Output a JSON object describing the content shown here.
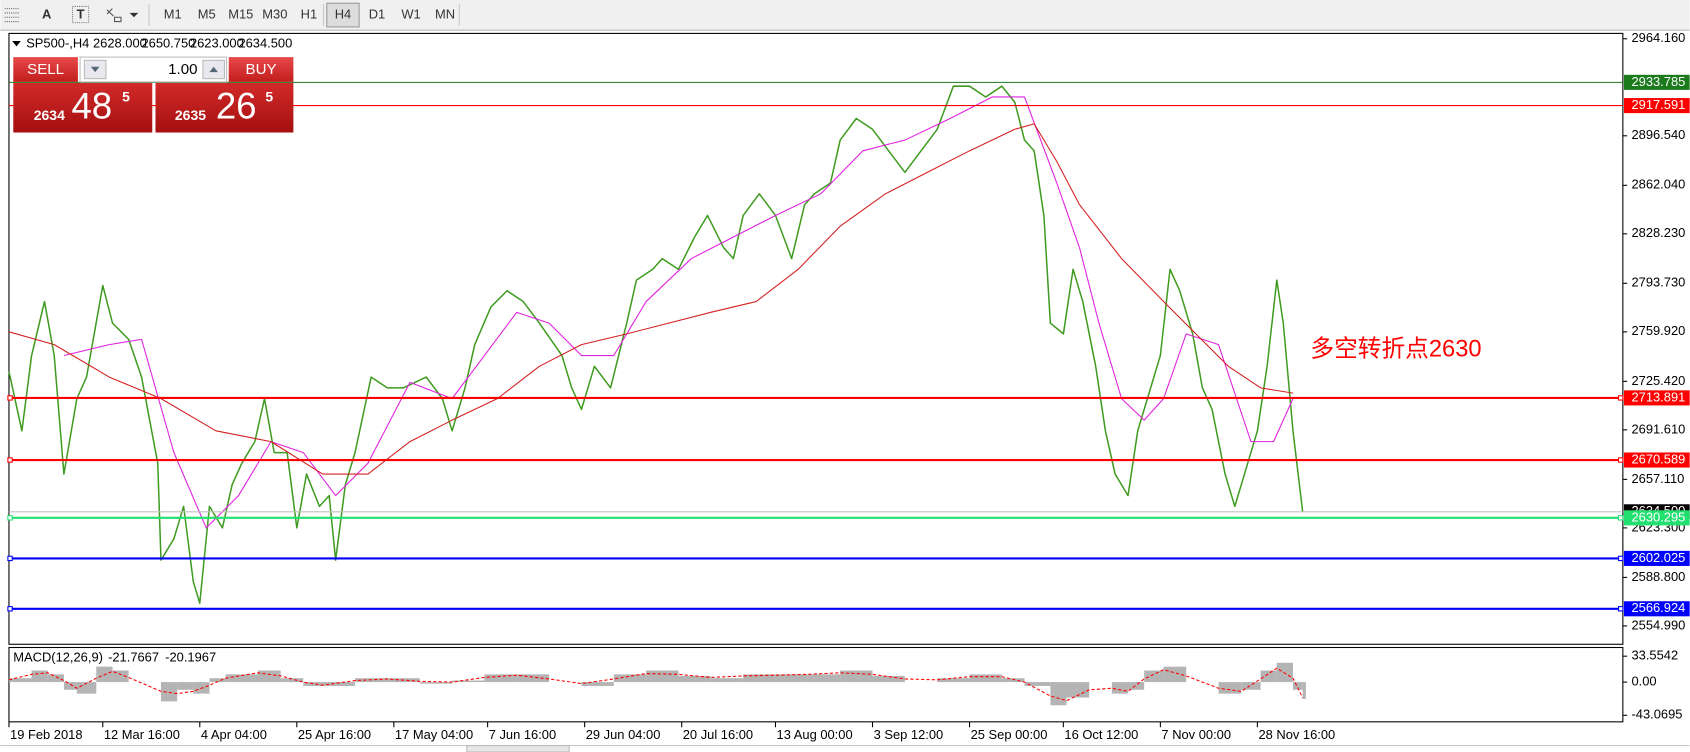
{
  "toolbar": {
    "icons": [
      "A",
      "T"
    ],
    "timeframes": [
      "M1",
      "M5",
      "M15",
      "M30",
      "H1",
      "H4",
      "D1",
      "W1",
      "MN"
    ],
    "selected": 5
  },
  "trade_panel": {
    "sell": "SELL",
    "buy": "BUY",
    "lot": "1.00",
    "bid": [
      2634,
      48,
      5
    ],
    "ask": [
      2635,
      26,
      5
    ]
  },
  "chart_data": [
    {
      "type": "line",
      "title": "SP500-,H4",
      "ohlc": [
        {
          "value": 2628,
          "label": "2628.000"
        },
        {
          "value": 2650.75,
          "label": "2650.750"
        },
        {
          "value": 2623,
          "label": "2623.000"
        },
        {
          "value": 2634.5,
          "label": "2634.500"
        }
      ],
      "annotation": "多空转折点2630",
      "annotation_color": "#ff0000",
      "xlim": [
        0,
        499
      ],
      "ylim": [
        2542.2,
        2967.9
      ],
      "grid": false,
      "xticks": [
        {
          "value": 0,
          "label": "19 Feb 2018"
        },
        {
          "value": 29,
          "label": "12 Mar 16:00"
        },
        {
          "value": 59,
          "label": "4 Apr 04:00"
        },
        {
          "value": 89,
          "label": "25 Apr 16:00"
        },
        {
          "value": 119,
          "label": "17 May 04:00"
        },
        {
          "value": 148,
          "label": "7 Jun 16:00"
        },
        {
          "value": 178,
          "label": "29 Jun 04:00"
        },
        {
          "value": 208,
          "label": "20 Jul 16:00"
        },
        {
          "value": 237,
          "label": "13 Aug 00:00"
        },
        {
          "value": 267,
          "label": "3 Sep 12:00"
        },
        {
          "value": 297,
          "label": "25 Sep 00:00"
        },
        {
          "value": 326,
          "label": "16 Oct 12:00"
        },
        {
          "value": 356,
          "label": "7 Nov 00:00"
        },
        {
          "value": 386,
          "label": "28 Nov 16:00"
        }
      ],
      "yticks": [
        {
          "value": 2964.16,
          "label": "2964.160"
        },
        {
          "value": 2896.54,
          "label": "2896.540"
        },
        {
          "value": 2862.04,
          "label": "2862.040"
        },
        {
          "value": 2828.23,
          "label": "2828.230"
        },
        {
          "value": 2793.73,
          "label": "2793.730"
        },
        {
          "value": 2759.92,
          "label": "2759.920"
        },
        {
          "value": 2725.42,
          "label": "2725.420"
        },
        {
          "value": 2691.61,
          "label": "2691.610"
        },
        {
          "value": 2657.11,
          "label": "2657.110"
        },
        {
          "value": 2623.3,
          "label": "2623.300"
        },
        {
          "value": 2588.8,
          "label": "2588.800"
        },
        {
          "value": 2554.99,
          "label": "2554.990"
        }
      ],
      "levels": [
        {
          "value": 2933.785,
          "color": "#1b7a1b",
          "width": 1
        },
        {
          "value": 2917.591,
          "color": "#ff0000",
          "width": 1
        },
        {
          "value": 2713.891,
          "color": "#ff0000",
          "width": 2
        },
        {
          "value": 2670.589,
          "color": "#ff0000",
          "width": 2
        },
        {
          "value": 2630.295,
          "color": "#22e070",
          "width": 2
        },
        {
          "value": 2602.025,
          "color": "#0000ff",
          "width": 2
        },
        {
          "value": 2566.924,
          "color": "#0000ff",
          "width": 2
        }
      ],
      "series": [
        {
          "color": "#3f9b1f",
          "x": [
            0,
            4,
            7,
            11,
            14,
            17,
            21,
            24,
            29,
            32,
            37,
            41,
            46,
            47,
            51,
            54,
            57,
            59,
            62,
            66,
            69,
            72,
            76,
            79,
            82,
            86,
            89,
            92,
            96,
            99,
            101,
            104,
            107,
            112,
            117,
            122,
            129,
            134,
            137,
            141,
            144,
            149,
            154,
            159,
            164,
            171,
            174,
            177,
            181,
            186,
            191,
            194,
            199,
            202,
            207,
            212,
            216,
            221,
            224,
            227,
            232,
            237,
            242,
            246,
            249,
            254,
            257,
            262,
            267,
            272,
            277,
            282,
            287,
            292,
            297,
            302,
            307,
            311,
            314,
            317,
            320,
            322,
            326,
            329,
            332,
            336,
            339,
            342,
            346,
            349,
            352,
            356,
            359,
            362,
            366,
            369,
            372,
            376,
            379,
            382,
            386,
            389,
            392,
            394,
            397,
            400
          ],
          "values": [
            2732.2,
            2690.9,
            2743.4,
            2781.0,
            2743.4,
            2660.8,
            2713.4,
            2728.4,
            2792.2,
            2766.0,
            2754.7,
            2728.4,
            2668.3,
            2600.8,
            2615.8,
            2638.3,
            2585.8,
            2570.8,
            2638.3,
            2623.3,
            2653.3,
            2668.3,
            2683.4,
            2713.4,
            2675.8,
            2675.8,
            2623.3,
            2660.8,
            2638.3,
            2645.8,
            2600.8,
            2653.3,
            2675.8,
            2728.4,
            2720.9,
            2720.9,
            2728.4,
            2713.4,
            2690.9,
            2720.9,
            2751.0,
            2777.2,
            2788.5,
            2781.0,
            2766.0,
            2743.4,
            2720.9,
            2705.9,
            2735.9,
            2720.9,
            2766.0,
            2796.0,
            2803.5,
            2811.0,
            2803.5,
            2826.0,
            2841.0,
            2818.5,
            2811.0,
            2841.0,
            2856.1,
            2841.0,
            2811.0,
            2848.5,
            2856.1,
            2863.6,
            2893.6,
            2908.6,
            2901.1,
            2886.1,
            2871.1,
            2886.1,
            2901.1,
            2931.1,
            2931.1,
            2923.6,
            2931.1,
            2919.9,
            2893.6,
            2886.1,
            2841.0,
            2766.0,
            2758.5,
            2803.5,
            2781.0,
            2735.9,
            2690.9,
            2660.8,
            2645.8,
            2690.9,
            2713.4,
            2743.4,
            2803.5,
            2788.5,
            2758.5,
            2720.9,
            2705.9,
            2660.8,
            2638.3,
            2660.8,
            2690.9,
            2735.9,
            2796.0,
            2766.0,
            2690.9,
            2634.5
          ]
        },
        {
          "color": "#e020e0",
          "x": [
            17,
            31,
            41,
            51,
            61,
            71,
            81,
            91,
            101,
            111,
            124,
            137,
            147,
            157,
            167,
            177,
            187,
            197,
            211,
            224,
            237,
            251,
            264,
            277,
            291,
            304,
            314,
            324,
            331,
            337,
            344,
            351,
            357,
            364,
            374,
            384,
            391,
            397
          ],
          "values": [
            2743.4,
            2751.0,
            2754.7,
            2675.8,
            2623.3,
            2645.8,
            2683.4,
            2675.8,
            2645.8,
            2668.3,
            2724.7,
            2713.4,
            2743.4,
            2773.5,
            2766.0,
            2743.4,
            2743.4,
            2781.0,
            2811.0,
            2826.0,
            2841.0,
            2856.1,
            2886.1,
            2893.6,
            2908.6,
            2923.6,
            2923.6,
            2863.6,
            2818.5,
            2766.0,
            2713.4,
            2698.4,
            2713.4,
            2758.5,
            2751.0,
            2683.4,
            2683.4,
            2713.4
          ]
        },
        {
          "color": "#d42020",
          "x": [
            0,
            14,
            31,
            47,
            64,
            81,
            97,
            111,
            124,
            137,
            151,
            164,
            177,
            191,
            204,
            217,
            231,
            244,
            257,
            271,
            284,
            297,
            311,
            317,
            324,
            331,
            344,
            357,
            367,
            377,
            387,
            397
          ],
          "values": [
            2759.9,
            2751.0,
            2728.4,
            2713.4,
            2690.9,
            2683.4,
            2660.8,
            2660.8,
            2683.4,
            2698.4,
            2713.4,
            2735.9,
            2751.0,
            2758.5,
            2766.0,
            2773.5,
            2781.0,
            2803.5,
            2833.5,
            2856.1,
            2871.1,
            2886.1,
            2901.1,
            2904.8,
            2878.6,
            2848.5,
            2811.0,
            2781.0,
            2758.5,
            2735.9,
            2720.9,
            2717.2
          ]
        }
      ]
    },
    {
      "type": "macd",
      "title": "MACD(12,26,9)",
      "readout": [
        -21.7667,
        -20.1967
      ],
      "xlim": [
        0,
        499
      ],
      "ylim": [
        -51.5,
        44.8
      ],
      "yticks": [
        33.5542,
        {
          "value": 0,
          "label": "0.00"
        },
        -43.0695
      ],
      "series": [
        {
          "style": "histogram",
          "color": "#b4b4b4",
          "x": [
            0,
            7,
            12,
            17,
            21,
            27,
            32,
            37,
            47,
            52,
            57,
            62,
            67,
            77,
            84,
            91,
            97,
            107,
            117,
            127,
            137,
            147,
            157,
            167,
            177,
            187,
            197,
            207,
            217,
            227,
            237,
            247,
            257,
            267,
            277,
            287,
            297,
            307,
            314,
            322,
            327,
            334,
            341,
            346,
            351,
            357,
            364,
            374,
            381,
            387,
            392,
            397,
            400
          ],
          "values": [
            5,
            15,
            10,
            -10,
            -15,
            20,
            15,
            0,
            -25,
            -10,
            -15,
            5,
            10,
            15,
            5,
            -5,
            -5,
            5,
            5,
            -2,
            2,
            10,
            10,
            0,
            -5,
            10,
            15,
            8,
            5,
            10,
            10,
            10,
            15,
            8,
            0,
            5,
            10,
            5,
            -5,
            -30,
            -20,
            0,
            -15,
            -10,
            15,
            20,
            0,
            -15,
            -10,
            15,
            25,
            -10,
            -21.7667
          ]
        },
        {
          "style": "dashed",
          "color": "#ff0000",
          "x": [
            0,
            7,
            12,
            17,
            21,
            27,
            32,
            37,
            47,
            52,
            57,
            62,
            67,
            77,
            84,
            91,
            97,
            107,
            117,
            127,
            137,
            147,
            157,
            167,
            177,
            187,
            197,
            207,
            217,
            227,
            237,
            247,
            257,
            267,
            277,
            287,
            297,
            307,
            314,
            322,
            327,
            334,
            341,
            346,
            351,
            357,
            364,
            374,
            381,
            387,
            392,
            397,
            400
          ],
          "values": [
            3,
            10,
            12,
            2,
            -8,
            5,
            14,
            6,
            -12,
            -15,
            -12,
            -4,
            5,
            12,
            8,
            0,
            -4,
            2,
            4,
            1,
            0,
            6,
            9,
            4,
            -2,
            4,
            11,
            10,
            6,
            8,
            9,
            10,
            12,
            10,
            4,
            3,
            7,
            7,
            0,
            -18,
            -24,
            -10,
            -8,
            -12,
            4,
            16,
            8,
            -8,
            -12,
            4,
            18,
            5,
            -20.1967
          ]
        }
      ]
    }
  ]
}
